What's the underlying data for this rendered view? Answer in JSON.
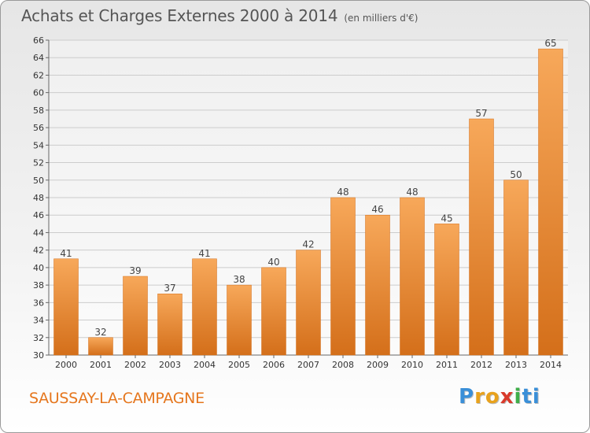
{
  "title": "Achats et Charges Externes 2000 à 2014",
  "subtitle": "(en milliers d'€)",
  "footer_label": "SAUSSAY-LA-CAMPAGNE",
  "brand": {
    "letters": [
      "P",
      "r",
      "o",
      "x",
      "i",
      "t",
      "i"
    ],
    "colors": [
      "#3a8fd8",
      "#e8a21d",
      "#e8a21d",
      "#d93a2b",
      "#3fae49",
      "#3a8fd8",
      "#3a8fd8"
    ]
  },
  "colors": {
    "bar": "#f0913a",
    "bar_light": "#f7a85a",
    "bar_dark": "#d46f1a",
    "grid": "#cccccc"
  },
  "chart_data": {
    "type": "bar",
    "title": "Achats et Charges Externes 2000 à 2014",
    "subtitle": "(en milliers d'€)",
    "categories": [
      "2000",
      "2001",
      "2002",
      "2003",
      "2004",
      "2005",
      "2006",
      "2007",
      "2008",
      "2009",
      "2010",
      "2011",
      "2012",
      "2013",
      "2014"
    ],
    "values": [
      41,
      32,
      39,
      37,
      41,
      38,
      40,
      42,
      48,
      46,
      48,
      45,
      57,
      50,
      65
    ],
    "ylim": [
      30,
      66
    ],
    "yticks": [
      30,
      32,
      34,
      36,
      38,
      40,
      42,
      44,
      46,
      48,
      50,
      52,
      54,
      56,
      58,
      60,
      62,
      64,
      66
    ],
    "grid": true,
    "xlabel": "",
    "ylabel": ""
  }
}
